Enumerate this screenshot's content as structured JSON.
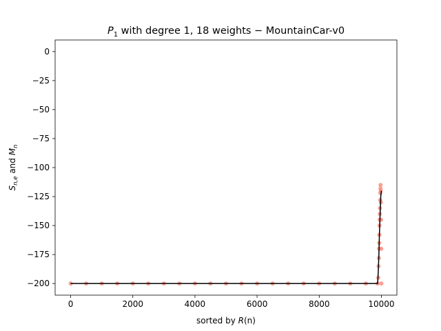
{
  "chart_data": {
    "type": "scatter",
    "title": "P₁ with degree 1, 18 weights – MountainCar-v0",
    "title_parts": {
      "var": "P",
      "sub": "1",
      "rest": " with degree 1, 18 weights − MountainCar-v0"
    },
    "xlabel": "sorted by R(n)",
    "xlabel_parts": {
      "pre": "sorted by ",
      "var": "R",
      "post": "(n)"
    },
    "ylabel": "S_{n,e} and M_n",
    "ylabel_parts": {
      "s": "S",
      "s_sub": "n,e",
      "mid": " and ",
      "m": "M",
      "m_sub": "n"
    },
    "xlim": [
      -500,
      10500
    ],
    "ylim": [
      -210,
      10
    ],
    "xticks": [
      0,
      2000,
      4000,
      6000,
      8000,
      10000
    ],
    "xtick_labels": [
      "0",
      "2000",
      "4000",
      "6000",
      "8000",
      "10000"
    ],
    "yticks": [
      0,
      -25,
      -50,
      -75,
      -100,
      -125,
      -150,
      -175,
      -200
    ],
    "ytick_labels": [
      "0",
      "−25",
      "−50",
      "−75",
      "−100",
      "−125",
      "−150",
      "−175",
      "−200"
    ],
    "grid": false,
    "series": [
      {
        "kind": "scatter",
        "color": "#fa8072",
        "x": [
          0,
          500,
          1000,
          1500,
          2000,
          2500,
          3000,
          3500,
          4000,
          4500,
          5000,
          5500,
          6000,
          6500,
          7000,
          7500,
          8000,
          8500,
          9000,
          9500,
          9880,
          9900,
          9910,
          9920,
          9925,
          9930,
          9935,
          9940,
          9945,
          9950,
          9955,
          9960,
          9965,
          9970,
          9975,
          9980,
          9985,
          9990,
          9995,
          10000
        ],
        "y": [
          -200,
          -200,
          -200,
          -200,
          -200,
          -200,
          -200,
          -200,
          -200,
          -200,
          -200,
          -200,
          -200,
          -200,
          -200,
          -200,
          -200,
          -200,
          -200,
          -200,
          -200,
          -195,
          -185,
          -178,
          -170,
          -165,
          -158,
          -150,
          -145,
          -140,
          -135,
          -128,
          -122,
          -118,
          -115,
          -120,
          -130,
          -145,
          -170,
          -200
        ]
      },
      {
        "kind": "line",
        "color": "#000000",
        "x": [
          0,
          9880,
          9900,
          9920,
          9940,
          9960,
          9980,
          10000
        ],
        "y": [
          -200,
          -200,
          -190,
          -175,
          -155,
          -140,
          -125,
          -120
        ]
      }
    ]
  }
}
